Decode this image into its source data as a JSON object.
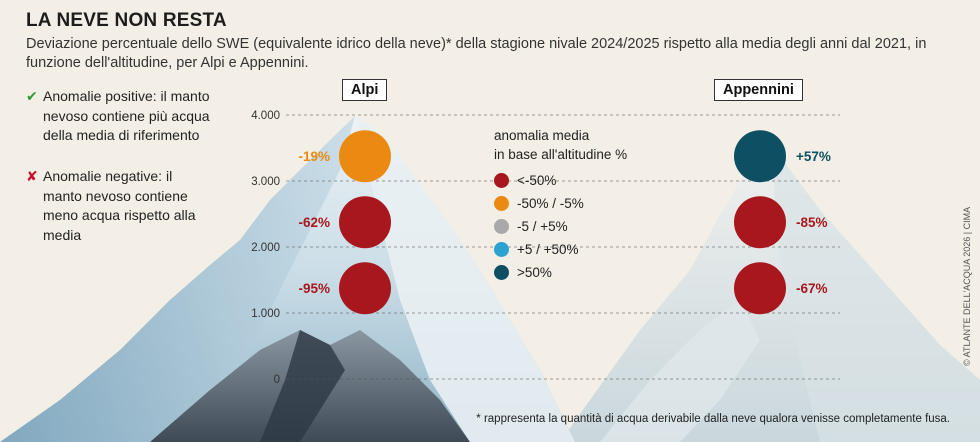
{
  "title": "LA NEVE NON RESTA",
  "subtitle": "Deviazione percentuale dello SWE (equivalente idrico della neve)* della stagione nivale 2024/2025 rispetto alla media degli anni dal 2021, in funzione dell'altitudine, per Alpi e Appennini.",
  "notes": {
    "positive_mark": "✔",
    "positive": "Anomalie positive: il manto nevoso contiene più acqua della media di riferimento",
    "negative_mark": "✘",
    "negative": "Anomalie negative: il manto nevoso contiene meno acqua rispetto alla media"
  },
  "legend": {
    "title_line1": "anomalia media",
    "title_line2": "in base all'altitudine %",
    "items": [
      {
        "label": "<-50%",
        "color": "#a8171e"
      },
      {
        "label": "-50% / -5%",
        "color": "#ea8a10"
      },
      {
        "label": "-5 / +5%",
        "color": "#a9a9a9"
      },
      {
        "label": "+5 / +50%",
        "color": "#2ba2cf"
      },
      {
        "label": ">50%",
        "color": "#0f4f64"
      }
    ]
  },
  "footnote": "* rappresenta la quantità di acqua derivabile dalla neve qualora venisse completamente fusa.",
  "credit": "© ATLANTE DELL'ACQUA 2026 | CIMA",
  "chart_data": {
    "type": "scatter",
    "y_axis": {
      "ticks": [
        0,
        1000,
        2000,
        3000,
        4000
      ],
      "tick_labels": [
        "0",
        "1.000",
        "2.000",
        "3.000",
        "4.000"
      ],
      "ylim": [
        0,
        4000
      ]
    },
    "series": [
      {
        "name": "Alpi",
        "points": [
          {
            "altitude": 3300,
            "anomaly": -19,
            "label": "-19%",
            "color": "#ea8a10"
          },
          {
            "altitude": 2300,
            "anomaly": -62,
            "label": "-62%",
            "color": "#a8171e"
          },
          {
            "altitude": 1300,
            "anomaly": -95,
            "label": "-95%",
            "color": "#a8171e"
          }
        ]
      },
      {
        "name": "Appennini",
        "points": [
          {
            "altitude": 3300,
            "anomaly": 57,
            "label": "+57%",
            "color": "#0f4f64"
          },
          {
            "altitude": 2300,
            "anomaly": -85,
            "label": "-85%",
            "color": "#a8171e"
          },
          {
            "altitude": 1300,
            "anomaly": -67,
            "label": "-67%",
            "color": "#a8171e"
          }
        ]
      }
    ],
    "label_colors": {
      "negative": "#a8171e",
      "positive": "#0f4f64",
      "mild_negative": "#ea8a10"
    }
  }
}
